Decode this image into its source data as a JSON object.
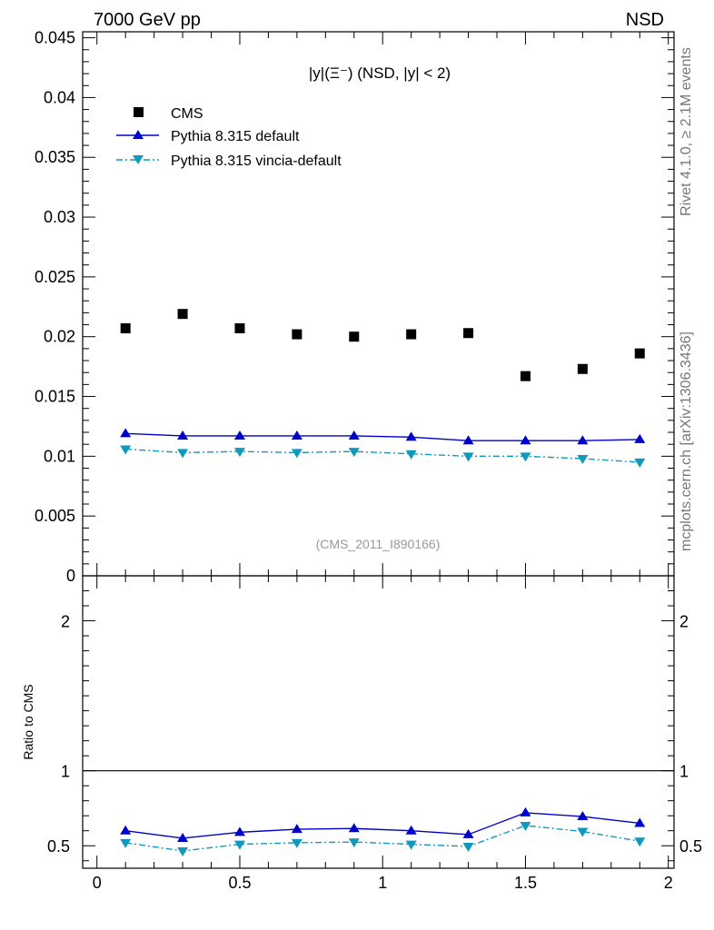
{
  "header": {
    "left": "7000 GeV pp",
    "right": "NSD"
  },
  "side_labels": {
    "rivet": "Rivet 4.1.0, ≥ 2.1M events",
    "mcplots": "mcplots.cern.ch [arXiv:1306.3436]"
  },
  "chart_data": [
    {
      "panel": "main",
      "type": "scatter",
      "title": "|y|(Ξ⁻) (NSD, |y| < 2)",
      "watermark": "(CMS_2011_I890166)",
      "xlim": [
        -0.05,
        2.02
      ],
      "ylim": [
        0,
        0.0455
      ],
      "ytick_labels": [
        "0",
        "0.005",
        "0.01",
        "0.015",
        "0.02",
        "0.025",
        "0.03",
        "0.035",
        "0.04",
        "0.045"
      ],
      "legend_position": "top-left",
      "x": [
        0.1,
        0.3,
        0.5,
        0.7,
        0.9,
        1.1,
        1.3,
        1.5,
        1.7,
        1.9
      ],
      "series": [
        {
          "name": "CMS",
          "marker": "square",
          "color": "#000000",
          "values": [
            0.0207,
            0.0219,
            0.0207,
            0.0202,
            0.02,
            0.0202,
            0.0203,
            0.0167,
            0.0173,
            0.0186
          ]
        },
        {
          "name": "Pythia 8.315 default",
          "marker": "triangle-up",
          "line": "solid",
          "color": "#0000cc",
          "values": [
            0.0119,
            0.0117,
            0.0117,
            0.0117,
            0.0117,
            0.0116,
            0.0113,
            0.0113,
            0.0113,
            0.0114
          ]
        },
        {
          "name": "Pythia 8.315 vincia-default",
          "marker": "triangle-down",
          "line": "dashdot",
          "color": "#1199bb",
          "values": [
            0.0106,
            0.0103,
            0.0104,
            0.0103,
            0.0104,
            0.0102,
            0.01,
            0.01,
            0.0098,
            0.0095
          ]
        }
      ]
    },
    {
      "panel": "ratio",
      "type": "line",
      "ylabel": "Ratio to CMS",
      "xlim": [
        -0.05,
        2.02
      ],
      "ylim": [
        0.35,
        2.3
      ],
      "xtick_labels": [
        "0",
        "0.5",
        "1",
        "1.5",
        "2"
      ],
      "ytick_labels": [
        "0.5",
        "1",
        "2"
      ],
      "reference_line": 1,
      "x": [
        0.1,
        0.3,
        0.5,
        0.7,
        0.9,
        1.1,
        1.3,
        1.5,
        1.7,
        1.9
      ],
      "series": [
        {
          "ref": "Pythia 8.315 default",
          "marker": "triangle-up",
          "line": "solid",
          "color": "#0000cc",
          "values": [
            0.6,
            0.55,
            0.59,
            0.61,
            0.615,
            0.6,
            0.575,
            0.72,
            0.695,
            0.65
          ]
        },
        {
          "ref": "Pythia 8.315 vincia-default",
          "marker": "triangle-down",
          "line": "dashdot",
          "color": "#1199bb",
          "values": [
            0.52,
            0.465,
            0.51,
            0.52,
            0.525,
            0.51,
            0.495,
            0.635,
            0.595,
            0.53
          ]
        }
      ]
    }
  ]
}
